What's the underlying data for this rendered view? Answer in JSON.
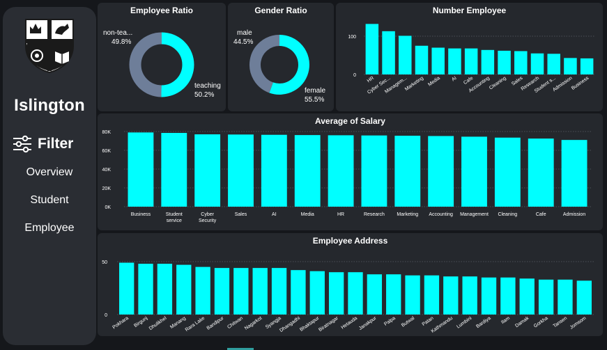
{
  "sidebar": {
    "brand": "Islington",
    "filter_label": "Filter",
    "nav": [
      "Overview",
      "Student",
      "Employee"
    ]
  },
  "colors": {
    "accent": "#00ffff",
    "muted": "#6e7e99",
    "card": "#25282d",
    "sidebar": "#2a2d33"
  },
  "employee_ratio": {
    "title": "Employee Ratio",
    "slices": [
      {
        "name": "non-tea...",
        "pct_label": "49.8%",
        "value": 49.8,
        "color": "#6e7e99"
      },
      {
        "name": "teaching",
        "pct_label": "50.2%",
        "value": 50.2,
        "color": "#00ffff"
      }
    ]
  },
  "gender_ratio": {
    "title": "Gender Ratio",
    "slices": [
      {
        "name": "male",
        "pct_label": "44.5%",
        "value": 44.5,
        "color": "#6e7e99"
      },
      {
        "name": "female",
        "pct_label": "55.5%",
        "value": 55.5,
        "color": "#00ffff"
      }
    ]
  },
  "chart_data": [
    {
      "type": "bar",
      "title": "Number Employee",
      "categories": [
        "HR",
        "Cyber Sec...",
        "Managem...",
        "Marketing",
        "Media",
        "AI",
        "Cafe",
        "Accounting",
        "Cleaning",
        "Sales",
        "Research",
        "Student s...",
        "Admission",
        "Business"
      ],
      "values": [
        132,
        113,
        101,
        75,
        70,
        68,
        68,
        64,
        62,
        61,
        55,
        54,
        43,
        42
      ],
      "ticks": [
        0,
        100
      ],
      "tick_labels": [
        "0",
        "100"
      ],
      "ylim": [
        0,
        140
      ]
    },
    {
      "type": "bar",
      "title": "Average of Salary",
      "categories": [
        "Business",
        "Student service",
        "Cyber Security",
        "Sales",
        "AI",
        "Media",
        "HR",
        "Research",
        "Marketing",
        "Accounting",
        "Management",
        "Cleaning",
        "Cafe",
        "Admission"
      ],
      "values": [
        79000,
        78500,
        77000,
        76800,
        76500,
        76200,
        76000,
        75800,
        75500,
        75200,
        74500,
        73500,
        72500,
        71000
      ],
      "ticks": [
        0,
        20000,
        40000,
        60000,
        80000
      ],
      "tick_labels": [
        "0K",
        "20K",
        "40K",
        "60K",
        "80K"
      ],
      "ylim": [
        0,
        80000
      ]
    },
    {
      "type": "bar",
      "title": "Employee Address",
      "categories": [
        "Pokhara",
        "Birgunj",
        "Dhulikhel",
        "Manang",
        "Rara Lake",
        "Bandipur",
        "Chitwan",
        "Nagarkot",
        "Syangja",
        "Dhangadhi",
        "Bhaktapur",
        "Biratnagar",
        "Hetauda",
        "Janakpur",
        "Palpa",
        "Butwal",
        "Patan",
        "Kathmandu",
        "Lumbini",
        "Bardiya",
        "Ilam",
        "Damak",
        "Gorkha",
        "Tansen",
        "Jomsom"
      ],
      "values": [
        49,
        48,
        48,
        47,
        45,
        44,
        44,
        44,
        44,
        42,
        41,
        40,
        40,
        38,
        38,
        37,
        37,
        36,
        36,
        35,
        35,
        34,
        33,
        33,
        32
      ],
      "ticks": [
        0,
        50
      ],
      "tick_labels": [
        "0",
        "50"
      ],
      "ylim": [
        0,
        50
      ]
    }
  ]
}
